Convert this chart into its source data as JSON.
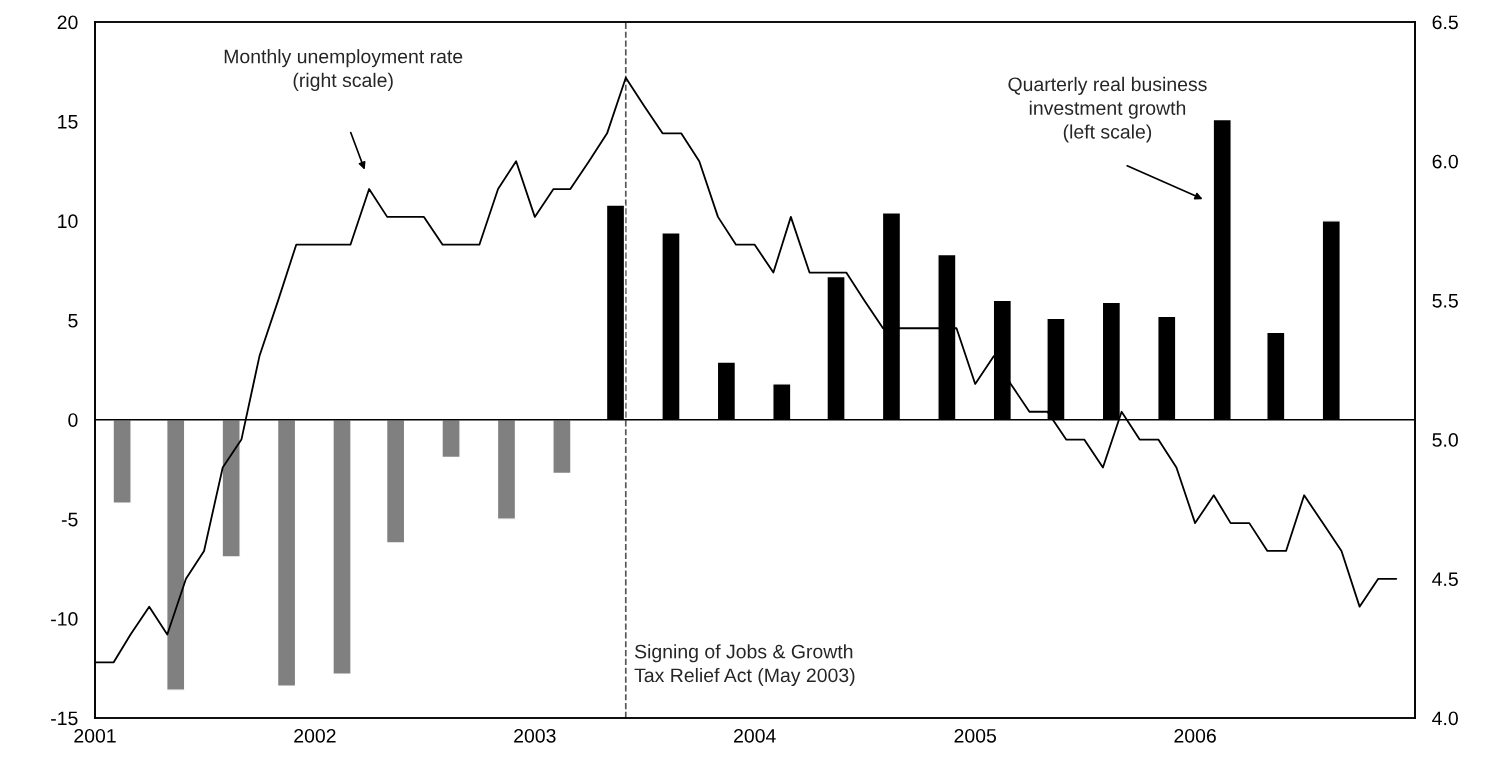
{
  "chart_data": {
    "type": "bar",
    "xlim": [
      "2001-01-01",
      "2007-01-01"
    ],
    "xticks": [
      {
        "value": "2001-01-01",
        "label": "2001"
      },
      {
        "value": "2002-01-01",
        "label": "2002"
      },
      {
        "value": "2003-01-01",
        "label": "2003"
      },
      {
        "value": "2004-01-01",
        "label": "2004"
      },
      {
        "value": "2005-01-01",
        "label": "2005"
      },
      {
        "value": "2006-01-01",
        "label": "2006"
      }
    ],
    "ylim": [
      -15,
      20
    ],
    "yticks": [
      -15,
      -10,
      -5,
      0,
      5,
      10,
      15,
      20
    ],
    "y2lim": [
      4.0,
      6.5
    ],
    "y2ticks": [
      {
        "value": 4.0,
        "label": "4.0"
      },
      {
        "value": 4.5,
        "label": "4.5"
      },
      {
        "value": 5.0,
        "label": "5.0"
      },
      {
        "value": 5.5,
        "label": "5.5"
      },
      {
        "value": 6.0,
        "label": "6.0"
      },
      {
        "value": 6.5,
        "label": "6.5"
      }
    ],
    "series": [
      {
        "x": [
          "2001-02-15",
          "2001-05-15",
          "2001-08-15",
          "2001-11-15",
          "2002-02-15",
          "2002-05-15",
          "2002-08-15",
          "2002-11-15",
          "2003-02-15",
          "2003-05-15",
          "2003-08-15",
          "2003-11-15",
          "2004-02-15",
          "2004-05-15",
          "2004-08-15",
          "2004-11-15",
          "2005-02-15",
          "2005-05-15",
          "2005-08-15",
          "2005-11-15",
          "2006-02-15",
          "2006-05-15",
          "2006-08-15"
        ],
        "values": [
          -4.2,
          -13.6,
          -6.9,
          -13.4,
          -12.8,
          -6.2,
          -1.9,
          -5.0,
          -2.7,
          10.8,
          9.4,
          2.9,
          1.8,
          7.2,
          10.4,
          8.3,
          6.0,
          5.1,
          5.9,
          5.2,
          15.1,
          4.4,
          10.0
        ],
        "colors": [
          "#808080",
          "#808080",
          "#808080",
          "#808080",
          "#808080",
          "#808080",
          "#808080",
          "#808080",
          "#808080",
          "#000000",
          "#000000",
          "#000000",
          "#000000",
          "#000000",
          "#000000",
          "#000000",
          "#000000",
          "#000000",
          "#000000",
          "#000000",
          "#000000",
          "#000000",
          "#000000"
        ]
      },
      {
        "type": "line",
        "axis": "y2",
        "color": "#000000",
        "x": [
          "2001-01",
          "2001-02",
          "2001-03",
          "2001-04",
          "2001-05",
          "2001-06",
          "2001-07",
          "2001-08",
          "2001-09",
          "2001-10",
          "2001-11",
          "2001-12",
          "2002-01",
          "2002-02",
          "2002-03",
          "2002-04",
          "2002-05",
          "2002-06",
          "2002-07",
          "2002-08",
          "2002-09",
          "2002-10",
          "2002-11",
          "2002-12",
          "2003-01",
          "2003-02",
          "2003-03",
          "2003-04",
          "2003-05",
          "2003-06",
          "2003-07",
          "2003-08",
          "2003-09",
          "2003-10",
          "2003-11",
          "2003-12",
          "2004-01",
          "2004-02",
          "2004-03",
          "2004-04",
          "2004-05",
          "2004-06",
          "2004-07",
          "2004-08",
          "2004-09",
          "2004-10",
          "2004-11",
          "2004-12",
          "2005-01",
          "2005-02",
          "2005-03",
          "2005-04",
          "2005-05",
          "2005-06",
          "2005-07",
          "2005-08",
          "2005-09",
          "2005-10",
          "2005-11",
          "2005-12",
          "2006-01",
          "2006-02",
          "2006-03",
          "2006-04",
          "2006-05",
          "2006-06",
          "2006-07",
          "2006-08",
          "2006-09",
          "2006-10",
          "2006-11",
          "2006-12"
        ],
        "values": [
          4.2,
          4.2,
          4.3,
          4.4,
          4.3,
          4.5,
          4.6,
          4.9,
          5.0,
          5.3,
          5.5,
          5.7,
          5.7,
          5.7,
          5.7,
          5.9,
          5.8,
          5.8,
          5.8,
          5.7,
          5.7,
          5.7,
          5.9,
          6.0,
          5.8,
          5.9,
          5.9,
          6.0,
          6.1,
          6.3,
          6.2,
          6.1,
          6.1,
          6.0,
          5.8,
          5.7,
          5.7,
          5.6,
          5.8,
          5.6,
          5.6,
          5.6,
          5.5,
          5.4,
          5.4,
          5.4,
          5.4,
          5.4,
          5.2,
          5.3,
          5.2,
          5.1,
          5.1,
          5.0,
          5.0,
          4.9,
          5.1,
          5.0,
          5.0,
          4.9,
          4.7,
          4.8,
          4.7,
          4.7,
          4.6,
          4.6,
          4.8,
          4.7,
          4.6,
          4.4,
          4.5,
          4.5
        ]
      }
    ],
    "ref_lines": [
      {
        "axis": "x",
        "value": "2003-06-01",
        "label": "Signing of Jobs & Growth\nTax Relief Act (May 2003)",
        "color": "#555555",
        "line_style": "dashed"
      },
      {
        "axis": "y",
        "value": 0,
        "color": "#000000"
      }
    ],
    "annotations": [
      "Monthly unemployment rate\n(right scale)",
      "Quarterly real business\ninvestment growth\n(left scale)"
    ],
    "grid": false,
    "legend": false
  }
}
